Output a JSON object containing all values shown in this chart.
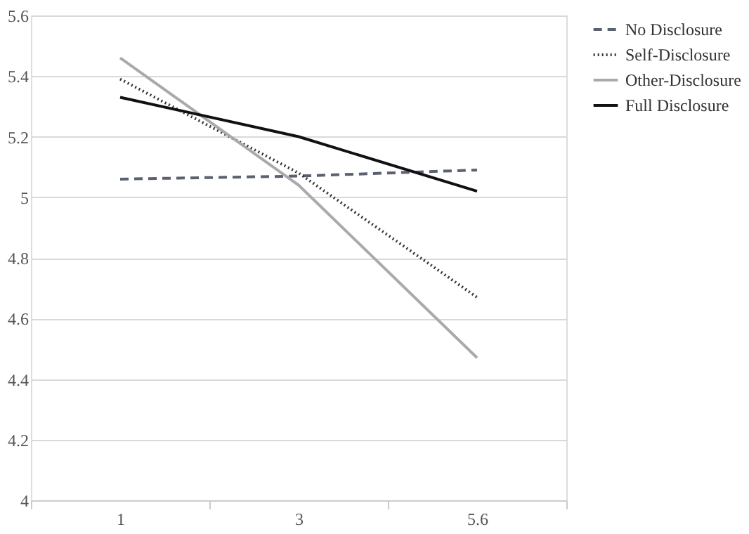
{
  "chart_data": {
    "type": "line",
    "categories": [
      "1",
      "3",
      "5.6"
    ],
    "series": [
      {
        "name": "No Disclosure",
        "color": "#5a6270",
        "line_style": "dashed",
        "values": [
          5.06,
          5.07,
          5.09
        ]
      },
      {
        "name": "Self-Disclosure",
        "color": "#333333",
        "line_style": "dotted",
        "values": [
          5.39,
          5.08,
          4.67
        ]
      },
      {
        "name": "Other-Disclosure",
        "color": "#aaaaaa",
        "line_style": "solid",
        "values": [
          5.46,
          5.04,
          4.47
        ]
      },
      {
        "name": "Full Disclosure",
        "color": "#111111",
        "line_style": "solid",
        "values": [
          5.33,
          5.2,
          5.02
        ]
      }
    ],
    "ylim": [
      4,
      5.6
    ],
    "yticks": [
      4,
      4.2,
      4.4,
      4.6,
      4.8,
      5,
      5.2,
      5.4,
      5.6
    ],
    "grid": "y",
    "legend": "right",
    "marker": "none"
  }
}
